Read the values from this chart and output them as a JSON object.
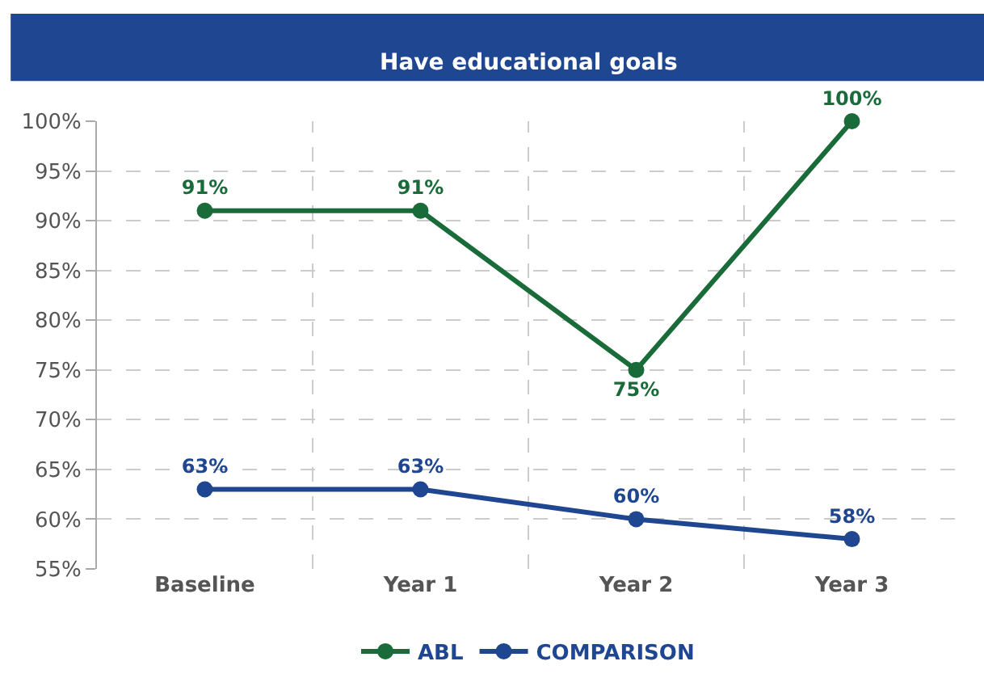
{
  "chart_data": {
    "type": "line",
    "title": "Have educational goals",
    "categories": [
      "Baseline",
      "Year 1",
      "Year 2",
      "Year 3"
    ],
    "series": [
      {
        "name": "ABL",
        "color": "#1a6b3a",
        "values": [
          91,
          91,
          75,
          100
        ],
        "value_labels": [
          "91%",
          "91%",
          "75%",
          "100%"
        ]
      },
      {
        "name": "COMPARISON",
        "color": "#1f4690",
        "values": [
          63,
          63,
          60,
          58
        ],
        "value_labels": [
          "63%",
          "63%",
          "60%",
          "58%"
        ]
      }
    ],
    "ylim": [
      55,
      100
    ],
    "yticks": [
      {
        "value": 55,
        "label": "55%"
      },
      {
        "value": 60,
        "label": "60%"
      },
      {
        "value": 65,
        "label": "65%"
      },
      {
        "value": 70,
        "label": "70%"
      },
      {
        "value": 75,
        "label": "75%"
      },
      {
        "value": 80,
        "label": "80%"
      },
      {
        "value": 85,
        "label": "85%"
      },
      {
        "value": 90,
        "label": "90%"
      },
      {
        "value": 95,
        "label": "95%"
      },
      {
        "value": 100,
        "label": "100%"
      }
    ],
    "grid": true,
    "legend": "bottom",
    "marker": "circle",
    "line_style": "solid"
  }
}
